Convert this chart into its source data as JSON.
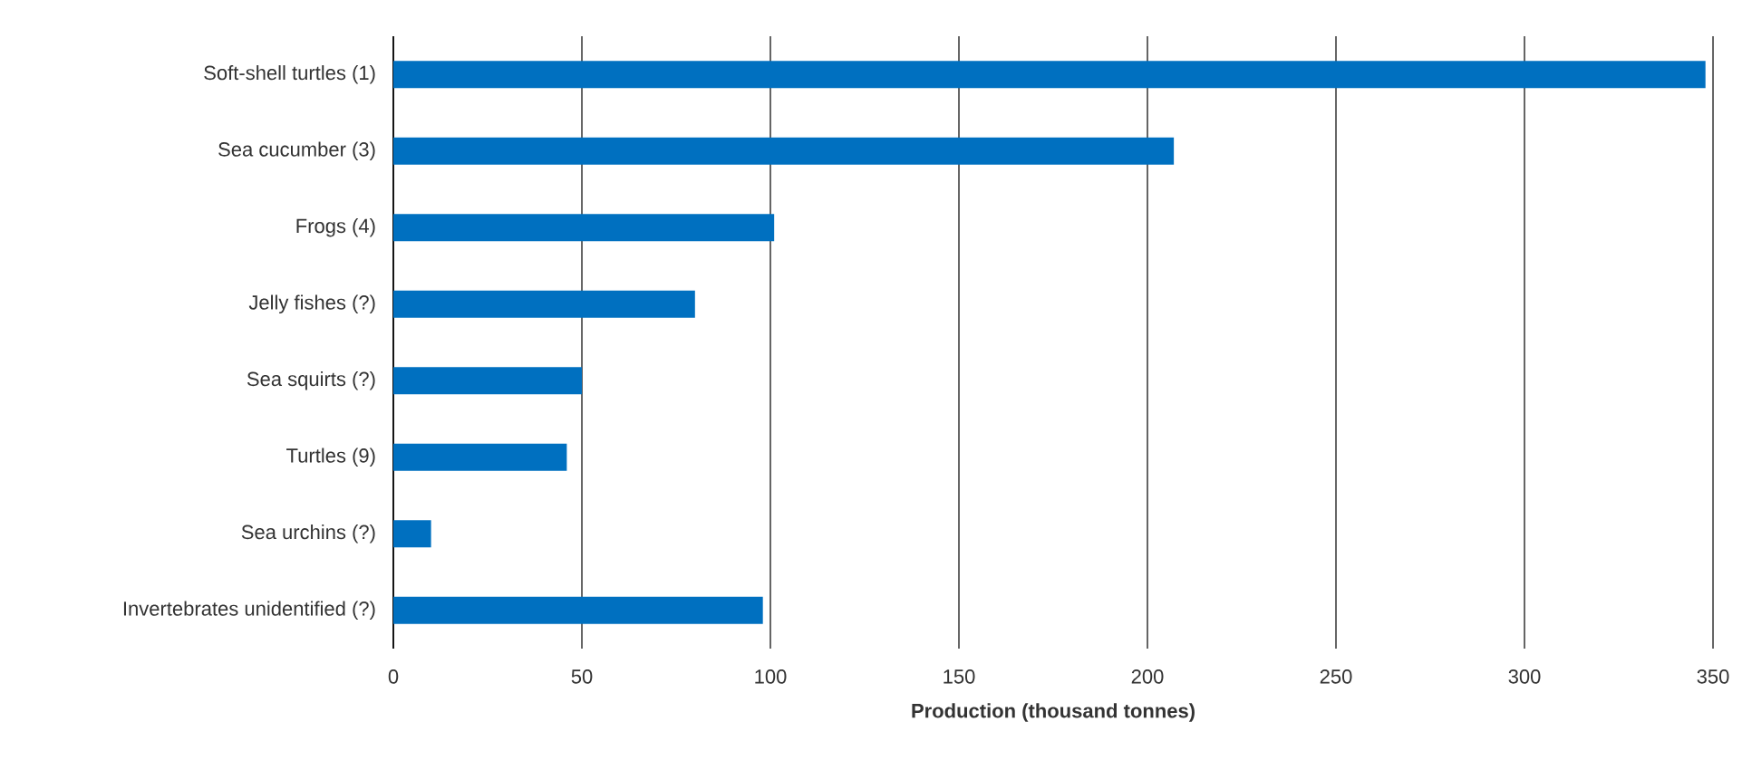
{
  "chart_data": {
    "type": "bar",
    "orientation": "horizontal",
    "xlabel": "Production (thousand tonnes)",
    "categories": [
      "Soft-shell turtles (1)",
      "Sea cucumber (3)",
      "Frogs (4)",
      "Jelly fishes (?)",
      "Sea squirts (?)",
      "Turtles (9)",
      "Sea urchins (?)",
      "Invertebrates unidentified (?)"
    ],
    "values": [
      348,
      207,
      101,
      80,
      50,
      46,
      10,
      98
    ],
    "color": "#0070c0",
    "xlim": [
      0,
      350
    ],
    "xticks": [
      0,
      50,
      100,
      150,
      200,
      250,
      300,
      350
    ],
    "grid": "x"
  }
}
